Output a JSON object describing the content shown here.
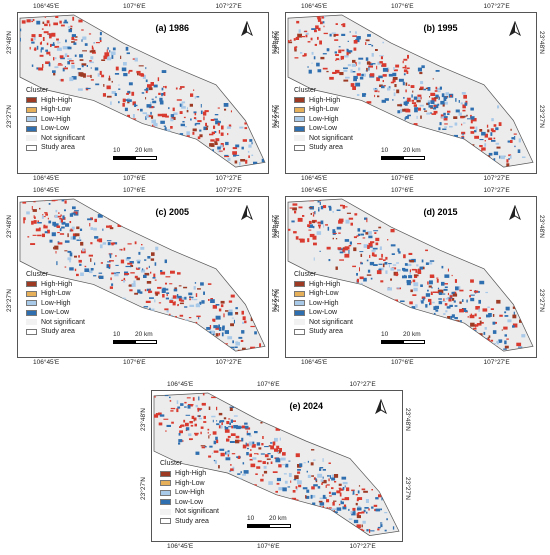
{
  "panels": [
    {
      "title": "(a) 1986"
    },
    {
      "title": "(b) 1995"
    },
    {
      "title": "(c) 2005"
    },
    {
      "title": "(d) 2015"
    },
    {
      "title": "(e) 2024"
    }
  ],
  "longitude_labels": [
    "106°45'E",
    "107°6'E",
    "107°27'E"
  ],
  "latitude_labels": [
    "23°48'N",
    "23°27'N"
  ],
  "legend": {
    "title": "Cluster",
    "items": [
      {
        "label": "High-High",
        "color": "#9c3a24"
      },
      {
        "label": "High-Low",
        "color": "#e6b05a"
      },
      {
        "label": "Low-High",
        "color": "#a9c9e8"
      },
      {
        "label": "Low-Low",
        "color": "#2f6fb0"
      },
      {
        "label": "Not significant",
        "color": "#f2f2f2"
      },
      {
        "label": "Study area",
        "color": "#ffffff"
      }
    ]
  },
  "scale_bar": {
    "label_mid": "10",
    "label_end": "20 km"
  },
  "colors": {
    "hh_alt": "#d93a2f",
    "low_low": "#2f6fb0",
    "low_high": "#a9c9e8",
    "not_significant_fill": "#ececec"
  }
}
